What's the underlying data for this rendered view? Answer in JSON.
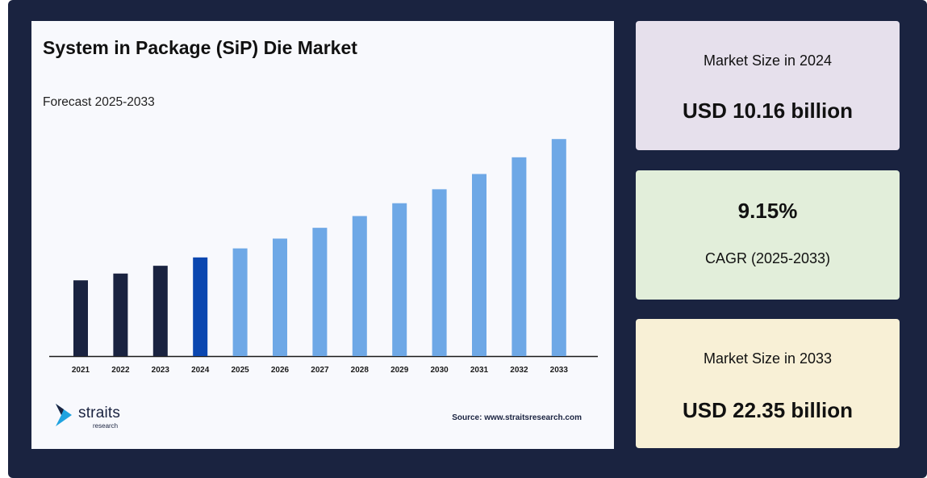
{
  "colors": {
    "historical_bar": "#1a2340",
    "base_year_bar": "#0b47b0",
    "forecast_bar": "#6ea8e6",
    "frame": "#1a2340",
    "card_1": "#e6e0ec",
    "card_2": "#e2eeda",
    "card_3": "#f8f0d6"
  },
  "chart_data": {
    "type": "bar",
    "title": "System in Package (SiP) Die Market",
    "subtitle": "Forecast 2025-2033",
    "categories": [
      "2021",
      "2022",
      "2023",
      "2024",
      "2025",
      "2026",
      "2027",
      "2028",
      "2029",
      "2030",
      "2031",
      "2032",
      "2033"
    ],
    "values": [
      7.8,
      8.5,
      9.3,
      10.16,
      11.09,
      12.1,
      13.21,
      14.42,
      15.74,
      17.18,
      18.75,
      20.47,
      22.35
    ],
    "ylim": [
      0,
      24
    ],
    "grid": false,
    "legend": "none"
  },
  "footer": {
    "logo_icon": "straits-logo-icon",
    "logo_word": "straits",
    "logo_sub": "research",
    "source": "Source: www.straitsresearch.com"
  },
  "stats": {
    "card1": {
      "label": "Market Size in 2024",
      "value": "USD 10.16 billion"
    },
    "card2": {
      "value": "9.15%",
      "label": "CAGR (2025-2033)"
    },
    "card3": {
      "label": "Market Size in 2033",
      "value": "USD 22.35 billion"
    }
  }
}
